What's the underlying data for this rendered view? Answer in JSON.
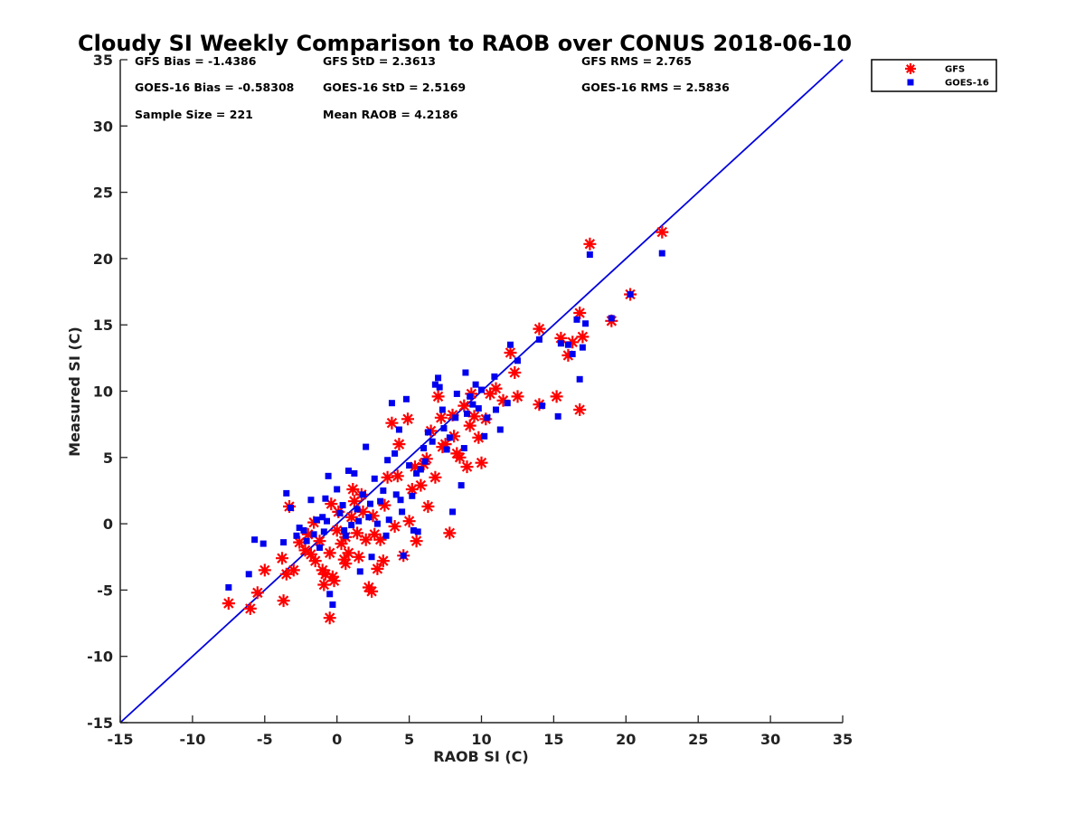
{
  "chart_data": {
    "type": "scatter",
    "title": "Cloudy SI Weekly Comparison to RAOB over CONUS 2018-06-10",
    "xlabel": "RAOB SI (C)",
    "ylabel": "Measured SI (C)",
    "xlim": [
      -15,
      35
    ],
    "ylim": [
      -15,
      35
    ],
    "xticks": [
      -15,
      -10,
      -5,
      0,
      5,
      10,
      15,
      20,
      25,
      30,
      35
    ],
    "yticks": [
      -15,
      -10,
      -5,
      0,
      5,
      10,
      15,
      20,
      25,
      30,
      35
    ],
    "grid": false,
    "legend_position": "top-right (outside axes)",
    "reference_line": {
      "from": [
        -15,
        -15
      ],
      "to": [
        35,
        35
      ],
      "color": "#0000dd"
    },
    "stats": [
      "GFS Bias = -1.4386",
      "GFS StD = 2.3613",
      "GFS RMS = 2.765",
      "GOES-16 Bias = -0.58308",
      "GOES-16 StD = 2.5169",
      "GOES-16 RMS = 2.5836",
      "Sample Size = 221",
      "Mean RAOB = 4.2186"
    ],
    "series": [
      {
        "name": "GFS",
        "marker": "asterisk",
        "color": "#ff0000",
        "points": [
          [
            -7.5,
            -6
          ],
          [
            -6,
            -6.4
          ],
          [
            -5.5,
            -5.2
          ],
          [
            -5,
            -3.5
          ],
          [
            -3.7,
            -5.8
          ],
          [
            -3.8,
            -2.6
          ],
          [
            -3.5,
            -3.8
          ],
          [
            -3.3,
            1.3
          ],
          [
            -3,
            -3.5
          ],
          [
            -2.6,
            -1.4
          ],
          [
            -2.2,
            -2
          ],
          [
            -1.8,
            -2.3
          ],
          [
            -1.5,
            -2.8
          ],
          [
            -1.2,
            -1.3
          ],
          [
            -1,
            -3.5
          ],
          [
            -0.9,
            -4.6
          ],
          [
            -0.8,
            -3.8
          ],
          [
            -0.5,
            -7.1
          ],
          [
            -0.5,
            -2.2
          ],
          [
            -0.3,
            -4
          ],
          [
            -0.2,
            -4.3
          ],
          [
            0,
            -0.5
          ],
          [
            0.3,
            -1.5
          ],
          [
            0.5,
            -2.7
          ],
          [
            0.6,
            -3
          ],
          [
            0.8,
            -2.2
          ],
          [
            1,
            0.5
          ],
          [
            1.2,
            1.7
          ],
          [
            1.4,
            -0.7
          ],
          [
            1.5,
            -2.5
          ],
          [
            1.7,
            2.2
          ],
          [
            2,
            -1.2
          ],
          [
            2.2,
            -4.8
          ],
          [
            2.4,
            -5.1
          ],
          [
            2.5,
            0.6
          ],
          [
            2.8,
            -3.4
          ],
          [
            3,
            -1.2
          ],
          [
            3.2,
            -2.8
          ],
          [
            3.5,
            3.5
          ],
          [
            3.8,
            7.6
          ],
          [
            4,
            -0.2
          ],
          [
            4.3,
            6
          ],
          [
            4.6,
            -2.4
          ],
          [
            4.9,
            7.9
          ],
          [
            5,
            0.2
          ],
          [
            5.2,
            2.6
          ],
          [
            5.5,
            -1.3
          ],
          [
            5.8,
            2.9
          ],
          [
            6,
            4.5
          ],
          [
            6.3,
            1.3
          ],
          [
            6.5,
            7
          ],
          [
            6.8,
            3.5
          ],
          [
            7,
            9.6
          ],
          [
            7.3,
            5.8
          ],
          [
            7.5,
            6
          ],
          [
            7.8,
            -0.7
          ],
          [
            8,
            8.2
          ],
          [
            8.3,
            5.3
          ],
          [
            8.5,
            5
          ],
          [
            8.8,
            8.9
          ],
          [
            9,
            4.3
          ],
          [
            9.3,
            9.8
          ],
          [
            9.5,
            8.1
          ],
          [
            9.8,
            6.5
          ],
          [
            10,
            4.6
          ],
          [
            10.3,
            7.9
          ],
          [
            10.6,
            9.8
          ],
          [
            11,
            10.2
          ],
          [
            11.5,
            9.3
          ],
          [
            12,
            12.9
          ],
          [
            12.3,
            11.4
          ],
          [
            12.5,
            9.6
          ],
          [
            14,
            14.7
          ],
          [
            14,
            9
          ],
          [
            15.2,
            9.6
          ],
          [
            15.5,
            14
          ],
          [
            16,
            12.7
          ],
          [
            16.3,
            13.7
          ],
          [
            16.8,
            15.9
          ],
          [
            16.8,
            8.6
          ],
          [
            17,
            14.1
          ],
          [
            17.5,
            21.1
          ],
          [
            19,
            15.3
          ],
          [
            20.3,
            17.3
          ],
          [
            22.5,
            22
          ],
          [
            -2,
            -0.8
          ],
          [
            -1.6,
            0.1
          ],
          [
            -0.4,
            1.5
          ],
          [
            0.1,
            0.9
          ],
          [
            0.6,
            -1
          ],
          [
            1.1,
            2.6
          ],
          [
            1.8,
            0.9
          ],
          [
            2.6,
            -0.8
          ],
          [
            3.3,
            1.4
          ],
          [
            4.2,
            3.6
          ],
          [
            5.4,
            4.3
          ],
          [
            6.2,
            4.9
          ],
          [
            7.2,
            8
          ],
          [
            8.1,
            6.6
          ],
          [
            9.2,
            7.4
          ]
        ]
      },
      {
        "name": "GOES-16",
        "marker": "square",
        "color": "#0000ee",
        "points": [
          [
            -7.5,
            -4.8
          ],
          [
            -6.1,
            -3.8
          ],
          [
            -5.7,
            -1.2
          ],
          [
            -5.1,
            -1.5
          ],
          [
            -3.7,
            -1.4
          ],
          [
            -3.5,
            2.3
          ],
          [
            -3.2,
            1.2
          ],
          [
            -2.8,
            -0.9
          ],
          [
            -2.6,
            -0.3
          ],
          [
            -2.3,
            -0.5
          ],
          [
            -1.8,
            1.8
          ],
          [
            -1.6,
            -0.8
          ],
          [
            -1.4,
            0.3
          ],
          [
            -1,
            0.5
          ],
          [
            -0.8,
            1.9
          ],
          [
            -0.6,
            3.6
          ],
          [
            -0.5,
            -5.3
          ],
          [
            -0.3,
            -6.1
          ],
          [
            0,
            2.6
          ],
          [
            0.2,
            0.8
          ],
          [
            0.5,
            -0.5
          ],
          [
            0.8,
            4
          ],
          [
            1.2,
            3.8
          ],
          [
            1.6,
            -3.6
          ],
          [
            1.8,
            2.2
          ],
          [
            2,
            5.8
          ],
          [
            2.4,
            -2.5
          ],
          [
            2.8,
            0
          ],
          [
            3.2,
            2.5
          ],
          [
            3.5,
            4.8
          ],
          [
            3.8,
            9.1
          ],
          [
            4,
            5.3
          ],
          [
            4.3,
            7.1
          ],
          [
            4.6,
            -2.4
          ],
          [
            4.8,
            9.4
          ],
          [
            5,
            4.4
          ],
          [
            5.3,
            -0.5
          ],
          [
            5.5,
            3.8
          ],
          [
            6,
            5.7
          ],
          [
            6.3,
            6.9
          ],
          [
            6.8,
            10.5
          ],
          [
            7,
            11
          ],
          [
            7.3,
            8.6
          ],
          [
            7.6,
            5.6
          ],
          [
            8,
            0.9
          ],
          [
            8.3,
            9.8
          ],
          [
            8.6,
            2.9
          ],
          [
            8.9,
            11.4
          ],
          [
            9.2,
            9.6
          ],
          [
            9.6,
            10.5
          ],
          [
            9.8,
            8.7
          ],
          [
            10,
            10.1
          ],
          [
            10.4,
            8
          ],
          [
            11,
            8.6
          ],
          [
            11.3,
            7.1
          ],
          [
            11.8,
            9.1
          ],
          [
            12,
            13.5
          ],
          [
            12.5,
            12.3
          ],
          [
            14,
            13.9
          ],
          [
            14.2,
            8.9
          ],
          [
            15.3,
            8.1
          ],
          [
            15.5,
            13.6
          ],
          [
            16,
            13.5
          ],
          [
            16.3,
            12.8
          ],
          [
            16.6,
            15.4
          ],
          [
            16.8,
            10.9
          ],
          [
            17,
            13.3
          ],
          [
            17.2,
            15.1
          ],
          [
            17.5,
            20.3
          ],
          [
            19,
            15.5
          ],
          [
            20.3,
            17.3
          ],
          [
            22.5,
            20.4
          ],
          [
            -1.2,
            -1.8
          ],
          [
            -0.7,
            0.2
          ],
          [
            0.4,
            1.4
          ],
          [
            1,
            -0.1
          ],
          [
            1.4,
            1.1
          ],
          [
            2.2,
            0.5
          ],
          [
            2.6,
            3.4
          ],
          [
            3,
            1.7
          ],
          [
            3.4,
            -0.9
          ],
          [
            4.1,
            2.2
          ],
          [
            4.5,
            0.9
          ],
          [
            5.2,
            2.1
          ],
          [
            5.8,
            4.1
          ],
          [
            6.6,
            6.2
          ],
          [
            7.4,
            7.2
          ],
          [
            8.2,
            8
          ],
          [
            8.8,
            5.7
          ],
          [
            9.4,
            9
          ],
          [
            10.2,
            6.6
          ],
          [
            10.9,
            11.1
          ],
          [
            -2.1,
            -1.3
          ],
          [
            -0.9,
            -0.6
          ],
          [
            0.6,
            -0.9
          ],
          [
            1.5,
            0.2
          ],
          [
            2.3,
            1.5
          ],
          [
            3.6,
            0.3
          ],
          [
            4.4,
            1.8
          ],
          [
            5.6,
            -0.6
          ],
          [
            6.1,
            4.7
          ],
          [
            7.1,
            10.3
          ],
          [
            7.8,
            6.5
          ],
          [
            9,
            8.3
          ]
        ]
      }
    ]
  }
}
